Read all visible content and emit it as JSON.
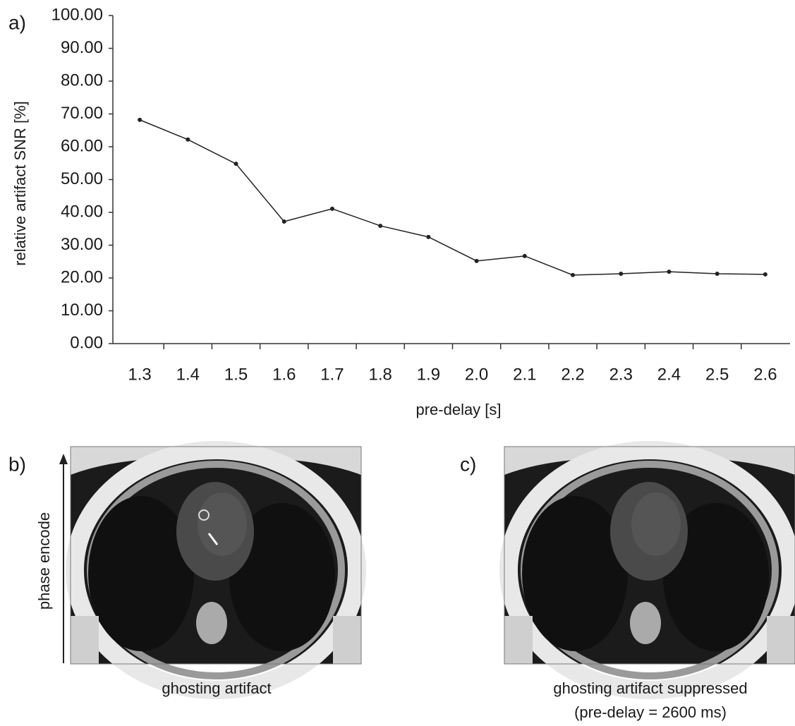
{
  "chart_data": {
    "type": "line",
    "panel_label": "a)",
    "y_label": "relative artifact  SNR [%]",
    "x_label": "pre-delay [s]",
    "categories": [
      "1.3",
      "1.4",
      "1.5",
      "1.6",
      "1.7",
      "1.8",
      "1.9",
      "2.0",
      "2.1",
      "2.2",
      "2.3",
      "2.4",
      "2.5",
      "2.6"
    ],
    "values": [
      68.2,
      62.2,
      54.8,
      37.2,
      41.1,
      35.9,
      32.5,
      25.2,
      26.7,
      20.9,
      21.3,
      21.9,
      21.3,
      21.1
    ],
    "color": "#222222",
    "ylim": [
      0,
      100
    ],
    "yticks": [
      {
        "value": 0,
        "label": "0.00"
      },
      {
        "value": 10,
        "label": "10.00"
      },
      {
        "value": 20,
        "label": "20.00"
      },
      {
        "value": 30,
        "label": "30.00"
      },
      {
        "value": 40,
        "label": "40.00"
      },
      {
        "value": 50,
        "label": "50.00"
      },
      {
        "value": 60,
        "label": "60.00"
      },
      {
        "value": 70,
        "label": "70.00"
      },
      {
        "value": 80,
        "label": "80.00"
      },
      {
        "value": 90,
        "label": "90.00"
      },
      {
        "value": 100,
        "label": "100.00"
      }
    ]
  },
  "panel_b": {
    "label": "b)",
    "axis_label": "phase encode",
    "caption": "ghosting artifact"
  },
  "panel_c": {
    "label": "c)",
    "caption": "ghosting artifact suppressed",
    "caption_line2": "(pre-delay = 2600 ms)"
  }
}
